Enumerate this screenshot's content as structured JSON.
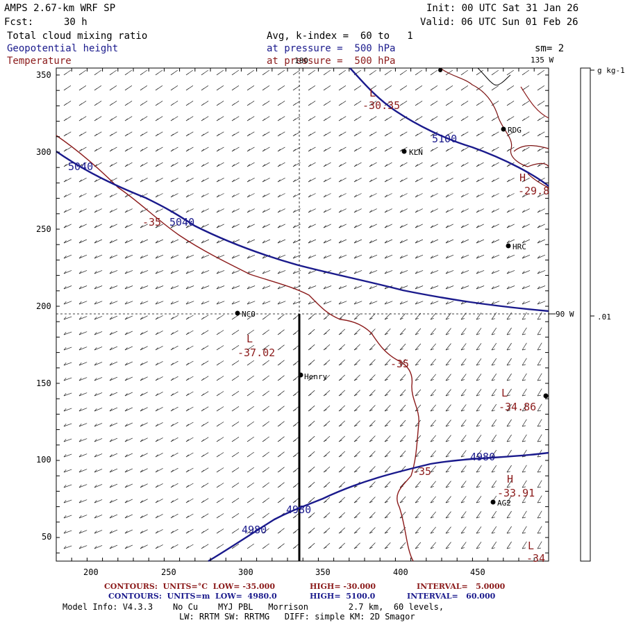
{
  "header": {
    "model": "AMPS 2.67-km WRF SP",
    "fcst_label": "Fcst:",
    "fcst_value": "30 h",
    "init": "Init: 00 UTC Sat 31 Jan 26",
    "valid": "Valid: 06 UTC Sun 01 Feb 26",
    "field1": "Total cloud mixing ratio",
    "field2": "Geopotential height",
    "field3": "Temperature",
    "avg": "Avg, k-index =  60 to   1",
    "pressure2": "at pressure =  500 hPa",
    "pressure3": "at pressure =  500 hPa",
    "sm": "sm= 2"
  },
  "colors": {
    "height": "#1a1a8c",
    "temperature": "#8b1a1a",
    "coast": "#7a1010"
  },
  "map": {
    "x_ticks": [
      "200",
      "250",
      "300",
      "350",
      "400",
      "450"
    ],
    "y_ticks": [
      "350",
      "300",
      "250",
      "200",
      "150",
      "100",
      "50"
    ],
    "lon_labels": {
      "lon180": "180",
      "lon135": "135 W",
      "lon90": "90 W"
    },
    "stations": [
      {
        "id": "station-rdg",
        "name": "RDG"
      },
      {
        "id": "station-kln",
        "name": "KLN"
      },
      {
        "id": "station-hrc",
        "name": "HRC"
      },
      {
        "id": "station-nco",
        "name": "NCO"
      },
      {
        "id": "station-henry",
        "name": "Henry"
      },
      {
        "id": "station-ag2",
        "name": "AG2"
      }
    ],
    "height_labels": [
      "5040",
      "5040",
      "5100",
      "4980",
      "4980",
      "4980"
    ],
    "temp_labels": [
      "-30.35",
      "-29.8",
      "-35",
      "-37.02",
      "-35",
      "-34.86",
      "-35",
      "-33.91",
      "-34"
    ],
    "extrema": [
      "L",
      "L",
      "L",
      "H",
      "H",
      "L"
    ]
  },
  "colorbar": {
    "units": "g kg-1",
    "tick": ".01"
  },
  "footer": {
    "contours1_label": "CONTOURS:  UNITS=°C  LOW= -35.000",
    "contours1_high": "HIGH= -30.000",
    "contours1_interval": "INTERVAL=   5.0000",
    "contours2_label": "CONTOURS:  UNITS=m  LOW=  4980.0",
    "contours2_high": "HIGH=  5100.0",
    "contours2_interval": "INTERVAL=   60.000",
    "model_info": "Model Info: V4.3.3    No Cu    MYJ PBL   Morrison        2.7 km,  60 levels,",
    "model_info2": "LW: RRTM SW: RRTMG   DIFF: simple KM: 2D Smagor"
  }
}
